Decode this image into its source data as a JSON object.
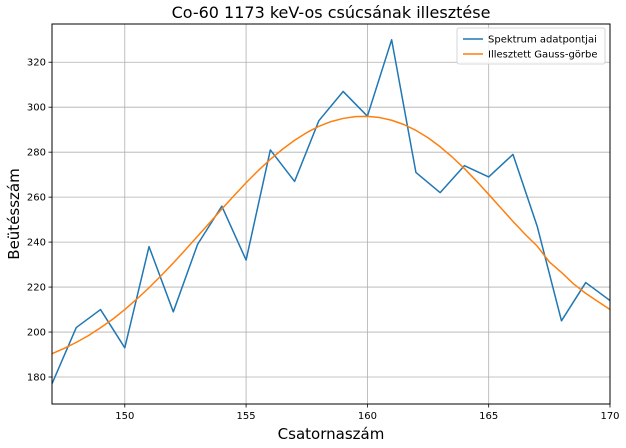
{
  "chart_data": {
    "type": "line",
    "title": "Co-60 1173 keV-os csúcsának illesztése",
    "xlabel": "Csatornaszám",
    "ylabel": "Beütésszám",
    "xlim": [
      147,
      170
    ],
    "ylim": [
      168,
      337
    ],
    "xticks": [
      150,
      155,
      160,
      165,
      170
    ],
    "yticks": [
      180,
      200,
      220,
      240,
      260,
      280,
      300,
      320
    ],
    "grid": true,
    "legend_position": "top-right",
    "series": [
      {
        "name": "Spektrum adatpontjai",
        "color": "#1f77b4",
        "x": [
          147,
          148,
          149,
          150,
          151,
          152,
          153,
          154,
          155,
          156,
          157,
          158,
          159,
          160,
          161,
          162,
          163,
          164,
          165,
          166,
          167,
          168,
          169,
          170
        ],
        "y": [
          177,
          202,
          210,
          193,
          238,
          209,
          239,
          256,
          232,
          281,
          267,
          294,
          307,
          296,
          330,
          271,
          262,
          274,
          269,
          279,
          247,
          205,
          222,
          214
        ]
      },
      {
        "name": "Illesztett Gauss-görbe",
        "color": "#ff7f0e",
        "x": [
          147,
          147.5,
          148,
          148.5,
          149,
          149.5,
          150,
          150.5,
          151,
          151.5,
          152,
          152.5,
          153,
          153.5,
          154,
          154.5,
          155,
          155.5,
          156,
          156.5,
          157,
          157.5,
          158,
          158.5,
          159,
          159.5,
          160,
          160.5,
          161,
          161.5,
          162,
          162.5,
          163,
          163.5,
          164,
          164.5,
          165,
          165.5,
          166,
          166.5,
          167,
          167.5,
          168,
          168.5,
          169,
          169.5,
          170
        ],
        "y": [
          190.4,
          192.7,
          195.4,
          198.4,
          201.9,
          205.7,
          210.0,
          214.7,
          219.7,
          225.1,
          230.7,
          236.6,
          242.6,
          248.6,
          254.7,
          260.6,
          266.4,
          271.8,
          276.8,
          281.3,
          285.3,
          288.7,
          291.5,
          293.6,
          295.0,
          295.8,
          295.9,
          295.4,
          294.2,
          292.3,
          289.7,
          286.4,
          282.4,
          277.8,
          272.7,
          267.1,
          261.2,
          255.2,
          249.2,
          243.5,
          238.2,
          231.2,
          226.5,
          221.4,
          217.2,
          213.6,
          210.0
        ]
      }
    ]
  }
}
